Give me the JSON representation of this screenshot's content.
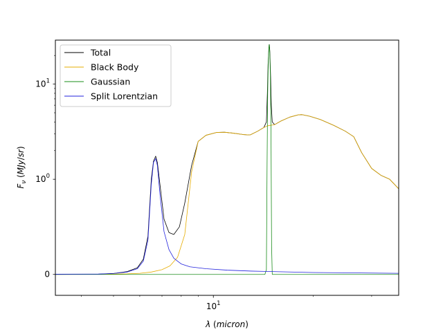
{
  "chart_data": {
    "type": "line",
    "title": "",
    "xlabel": "λ (micron)",
    "ylabel": "F_ν (MJy/sr)",
    "xscale": "log",
    "yscale": "symlog",
    "xlim": [
      3.34,
      36.2
    ],
    "ylim": [
      -0.22,
      29
    ],
    "grid": false,
    "legend_position": "top-left",
    "x_ticks": [
      {
        "value": 10,
        "label": "10^1"
      }
    ],
    "y_ticks": [
      {
        "value": 0,
        "label": "0"
      },
      {
        "value": 1,
        "label": "10^0"
      },
      {
        "value": 10,
        "label": "10^1"
      }
    ],
    "series": [
      {
        "name": "Total",
        "color": "#000000",
        "points": [
          [
            3.34,
            0
          ],
          [
            4.5,
            0.002
          ],
          [
            5.0,
            0.01
          ],
          [
            5.5,
            0.03
          ],
          [
            5.9,
            0.07
          ],
          [
            6.15,
            0.16
          ],
          [
            6.35,
            0.4
          ],
          [
            6.5,
            1.0
          ],
          [
            6.6,
            1.55
          ],
          [
            6.7,
            1.75
          ],
          [
            6.78,
            1.5
          ],
          [
            6.9,
            0.95
          ],
          [
            7.1,
            0.58
          ],
          [
            7.35,
            0.44
          ],
          [
            7.6,
            0.42
          ],
          [
            7.9,
            0.5
          ],
          [
            8.2,
            0.75
          ],
          [
            8.6,
            1.4
          ],
          [
            9.0,
            2.5
          ],
          [
            9.5,
            2.9
          ],
          [
            10.2,
            3.1
          ],
          [
            10.8,
            3.12
          ],
          [
            11.5,
            3.05
          ],
          [
            12.3,
            2.95
          ],
          [
            12.9,
            2.92
          ],
          [
            13.6,
            3.2
          ],
          [
            14.2,
            3.5
          ],
          [
            14.45,
            4.0
          ],
          [
            14.55,
            8.0
          ],
          [
            14.62,
            16.0
          ],
          [
            14.7,
            24.0
          ],
          [
            14.75,
            26.0
          ],
          [
            14.8,
            22.0
          ],
          [
            14.88,
            12.0
          ],
          [
            14.95,
            6.0
          ],
          [
            15.05,
            4.0
          ],
          [
            15.3,
            3.75
          ],
          [
            16.0,
            4.1
          ],
          [
            17.0,
            4.5
          ],
          [
            18.0,
            4.75
          ],
          [
            18.5,
            4.78
          ],
          [
            19.5,
            4.6
          ],
          [
            21.0,
            4.25
          ],
          [
            23.0,
            3.7
          ],
          [
            25.0,
            3.2
          ],
          [
            26.5,
            2.8
          ],
          [
            28.0,
            1.9
          ],
          [
            30.0,
            1.3
          ],
          [
            32.0,
            1.1
          ],
          [
            34.0,
            1.0
          ],
          [
            36.2,
            0.9
          ]
        ]
      },
      {
        "name": "Black Body",
        "color": "#e6ac00",
        "points": [
          [
            3.34,
            0
          ],
          [
            4.5,
            0.001
          ],
          [
            5.0,
            0.003
          ],
          [
            5.5,
            0.006
          ],
          [
            6.0,
            0.012
          ],
          [
            6.5,
            0.025
          ],
          [
            7.0,
            0.05
          ],
          [
            7.4,
            0.09
          ],
          [
            7.8,
            0.18
          ],
          [
            8.2,
            0.42
          ],
          [
            8.6,
            1.2
          ],
          [
            9.0,
            2.5
          ],
          [
            9.5,
            2.9
          ],
          [
            10.2,
            3.1
          ],
          [
            10.8,
            3.12
          ],
          [
            11.5,
            3.05
          ],
          [
            12.3,
            2.95
          ],
          [
            12.9,
            2.92
          ],
          [
            13.6,
            3.2
          ],
          [
            14.2,
            3.5
          ],
          [
            14.6,
            3.65
          ],
          [
            15.3,
            3.75
          ],
          [
            16.0,
            4.1
          ],
          [
            17.0,
            4.5
          ],
          [
            18.0,
            4.75
          ],
          [
            18.5,
            4.78
          ],
          [
            19.5,
            4.6
          ],
          [
            21.0,
            4.25
          ],
          [
            23.0,
            3.7
          ],
          [
            25.0,
            3.2
          ],
          [
            26.5,
            2.8
          ],
          [
            28.0,
            1.9
          ],
          [
            30.0,
            1.3
          ],
          [
            32.0,
            1.1
          ],
          [
            34.0,
            1.0
          ],
          [
            36.2,
            0.9
          ]
        ]
      },
      {
        "name": "Gaussian",
        "color": "#1a8c1a",
        "points": [
          [
            3.34,
            0
          ],
          [
            14.3,
            0
          ],
          [
            14.45,
            0.05
          ],
          [
            14.52,
            1.5
          ],
          [
            14.58,
            8.0
          ],
          [
            14.65,
            18.0
          ],
          [
            14.72,
            26.0
          ],
          [
            14.78,
            24.0
          ],
          [
            14.85,
            13.0
          ],
          [
            14.92,
            3.0
          ],
          [
            14.98,
            0.3
          ],
          [
            15.05,
            0
          ],
          [
            36.2,
            0
          ]
        ]
      },
      {
        "name": "Split Lorentzian",
        "color": "#2020dd",
        "points": [
          [
            3.34,
            0.002
          ],
          [
            4.5,
            0.004
          ],
          [
            5.0,
            0.01
          ],
          [
            5.5,
            0.025
          ],
          [
            5.9,
            0.06
          ],
          [
            6.15,
            0.14
          ],
          [
            6.35,
            0.36
          ],
          [
            6.5,
            0.95
          ],
          [
            6.6,
            1.5
          ],
          [
            6.7,
            1.65
          ],
          [
            6.78,
            1.4
          ],
          [
            6.9,
            0.85
          ],
          [
            7.1,
            0.45
          ],
          [
            7.35,
            0.26
          ],
          [
            7.6,
            0.17
          ],
          [
            8.0,
            0.11
          ],
          [
            8.5,
            0.08
          ],
          [
            9.5,
            0.06
          ],
          [
            11.0,
            0.045
          ],
          [
            13.0,
            0.035
          ],
          [
            15.0,
            0.03
          ],
          [
            20.0,
            0.02
          ],
          [
            36.2,
            0.012
          ]
        ]
      }
    ]
  }
}
